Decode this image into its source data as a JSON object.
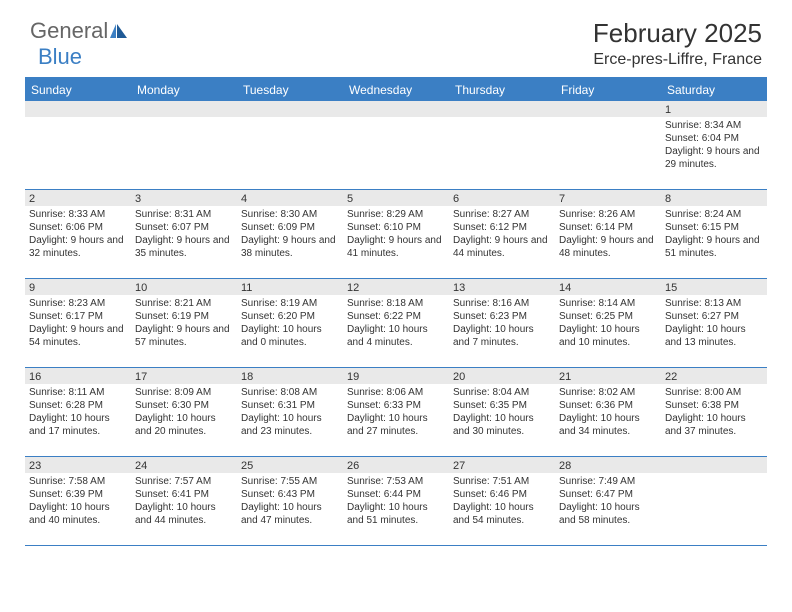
{
  "logo": {
    "part1": "General",
    "part2": "Blue"
  },
  "title": "February 2025",
  "location": "Erce-pres-Liffre, France",
  "colors": {
    "header_bg": "#3b7fc4",
    "header_text": "#ffffff",
    "daynum_bg": "#e9e9e9",
    "border": "#3b7fc4",
    "text": "#333333"
  },
  "dayNames": [
    "Sunday",
    "Monday",
    "Tuesday",
    "Wednesday",
    "Thursday",
    "Friday",
    "Saturday"
  ],
  "weeks": [
    [
      {
        "n": "",
        "sr": "",
        "ss": "",
        "dl": ""
      },
      {
        "n": "",
        "sr": "",
        "ss": "",
        "dl": ""
      },
      {
        "n": "",
        "sr": "",
        "ss": "",
        "dl": ""
      },
      {
        "n": "",
        "sr": "",
        "ss": "",
        "dl": ""
      },
      {
        "n": "",
        "sr": "",
        "ss": "",
        "dl": ""
      },
      {
        "n": "",
        "sr": "",
        "ss": "",
        "dl": ""
      },
      {
        "n": "1",
        "sr": "Sunrise: 8:34 AM",
        "ss": "Sunset: 6:04 PM",
        "dl": "Daylight: 9 hours and 29 minutes."
      }
    ],
    [
      {
        "n": "2",
        "sr": "Sunrise: 8:33 AM",
        "ss": "Sunset: 6:06 PM",
        "dl": "Daylight: 9 hours and 32 minutes."
      },
      {
        "n": "3",
        "sr": "Sunrise: 8:31 AM",
        "ss": "Sunset: 6:07 PM",
        "dl": "Daylight: 9 hours and 35 minutes."
      },
      {
        "n": "4",
        "sr": "Sunrise: 8:30 AM",
        "ss": "Sunset: 6:09 PM",
        "dl": "Daylight: 9 hours and 38 minutes."
      },
      {
        "n": "5",
        "sr": "Sunrise: 8:29 AM",
        "ss": "Sunset: 6:10 PM",
        "dl": "Daylight: 9 hours and 41 minutes."
      },
      {
        "n": "6",
        "sr": "Sunrise: 8:27 AM",
        "ss": "Sunset: 6:12 PM",
        "dl": "Daylight: 9 hours and 44 minutes."
      },
      {
        "n": "7",
        "sr": "Sunrise: 8:26 AM",
        "ss": "Sunset: 6:14 PM",
        "dl": "Daylight: 9 hours and 48 minutes."
      },
      {
        "n": "8",
        "sr": "Sunrise: 8:24 AM",
        "ss": "Sunset: 6:15 PM",
        "dl": "Daylight: 9 hours and 51 minutes."
      }
    ],
    [
      {
        "n": "9",
        "sr": "Sunrise: 8:23 AM",
        "ss": "Sunset: 6:17 PM",
        "dl": "Daylight: 9 hours and 54 minutes."
      },
      {
        "n": "10",
        "sr": "Sunrise: 8:21 AM",
        "ss": "Sunset: 6:19 PM",
        "dl": "Daylight: 9 hours and 57 minutes."
      },
      {
        "n": "11",
        "sr": "Sunrise: 8:19 AM",
        "ss": "Sunset: 6:20 PM",
        "dl": "Daylight: 10 hours and 0 minutes."
      },
      {
        "n": "12",
        "sr": "Sunrise: 8:18 AM",
        "ss": "Sunset: 6:22 PM",
        "dl": "Daylight: 10 hours and 4 minutes."
      },
      {
        "n": "13",
        "sr": "Sunrise: 8:16 AM",
        "ss": "Sunset: 6:23 PM",
        "dl": "Daylight: 10 hours and 7 minutes."
      },
      {
        "n": "14",
        "sr": "Sunrise: 8:14 AM",
        "ss": "Sunset: 6:25 PM",
        "dl": "Daylight: 10 hours and 10 minutes."
      },
      {
        "n": "15",
        "sr": "Sunrise: 8:13 AM",
        "ss": "Sunset: 6:27 PM",
        "dl": "Daylight: 10 hours and 13 minutes."
      }
    ],
    [
      {
        "n": "16",
        "sr": "Sunrise: 8:11 AM",
        "ss": "Sunset: 6:28 PM",
        "dl": "Daylight: 10 hours and 17 minutes."
      },
      {
        "n": "17",
        "sr": "Sunrise: 8:09 AM",
        "ss": "Sunset: 6:30 PM",
        "dl": "Daylight: 10 hours and 20 minutes."
      },
      {
        "n": "18",
        "sr": "Sunrise: 8:08 AM",
        "ss": "Sunset: 6:31 PM",
        "dl": "Daylight: 10 hours and 23 minutes."
      },
      {
        "n": "19",
        "sr": "Sunrise: 8:06 AM",
        "ss": "Sunset: 6:33 PM",
        "dl": "Daylight: 10 hours and 27 minutes."
      },
      {
        "n": "20",
        "sr": "Sunrise: 8:04 AM",
        "ss": "Sunset: 6:35 PM",
        "dl": "Daylight: 10 hours and 30 minutes."
      },
      {
        "n": "21",
        "sr": "Sunrise: 8:02 AM",
        "ss": "Sunset: 6:36 PM",
        "dl": "Daylight: 10 hours and 34 minutes."
      },
      {
        "n": "22",
        "sr": "Sunrise: 8:00 AM",
        "ss": "Sunset: 6:38 PM",
        "dl": "Daylight: 10 hours and 37 minutes."
      }
    ],
    [
      {
        "n": "23",
        "sr": "Sunrise: 7:58 AM",
        "ss": "Sunset: 6:39 PM",
        "dl": "Daylight: 10 hours and 40 minutes."
      },
      {
        "n": "24",
        "sr": "Sunrise: 7:57 AM",
        "ss": "Sunset: 6:41 PM",
        "dl": "Daylight: 10 hours and 44 minutes."
      },
      {
        "n": "25",
        "sr": "Sunrise: 7:55 AM",
        "ss": "Sunset: 6:43 PM",
        "dl": "Daylight: 10 hours and 47 minutes."
      },
      {
        "n": "26",
        "sr": "Sunrise: 7:53 AM",
        "ss": "Sunset: 6:44 PM",
        "dl": "Daylight: 10 hours and 51 minutes."
      },
      {
        "n": "27",
        "sr": "Sunrise: 7:51 AM",
        "ss": "Sunset: 6:46 PM",
        "dl": "Daylight: 10 hours and 54 minutes."
      },
      {
        "n": "28",
        "sr": "Sunrise: 7:49 AM",
        "ss": "Sunset: 6:47 PM",
        "dl": "Daylight: 10 hours and 58 minutes."
      },
      {
        "n": "",
        "sr": "",
        "ss": "",
        "dl": ""
      }
    ]
  ]
}
